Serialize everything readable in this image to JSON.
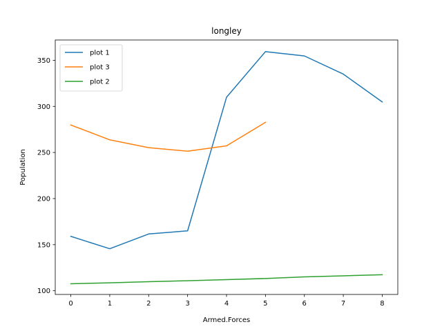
{
  "chart_data": {
    "type": "line",
    "title": "longley",
    "xlabel": "Armed.Forces",
    "ylabel": "Population",
    "xlim": [
      -0.4,
      8.4
    ],
    "ylim": [
      96,
      372
    ],
    "x_ticks": [
      0,
      1,
      2,
      3,
      4,
      5,
      6,
      7,
      8
    ],
    "y_ticks": [
      100,
      150,
      200,
      250,
      300,
      350
    ],
    "grid": false,
    "legend_position": "top-left",
    "series": [
      {
        "name": "plot 1",
        "color": "#1f77b4",
        "x": [
          0,
          1,
          2,
          3,
          4,
          5,
          6,
          7,
          8
        ],
        "values": [
          159.0,
          145.6,
          161.6,
          165.0,
          309.9,
          359.4,
          354.7,
          335.0,
          304.8
        ]
      },
      {
        "name": "plot 3",
        "color": "#ff7f0e",
        "x": [
          0,
          1,
          2,
          3,
          4,
          5
        ],
        "values": [
          279.8,
          263.7,
          255.2,
          251.4,
          257.2,
          282.7
        ]
      },
      {
        "name": "plot 2",
        "color": "#2ca02c",
        "x": [
          0,
          1,
          2,
          3,
          4,
          5,
          6,
          7,
          8
        ],
        "values": [
          107.6,
          108.6,
          109.8,
          110.9,
          112.1,
          113.3,
          115.1,
          116.2,
          117.4
        ]
      }
    ]
  }
}
